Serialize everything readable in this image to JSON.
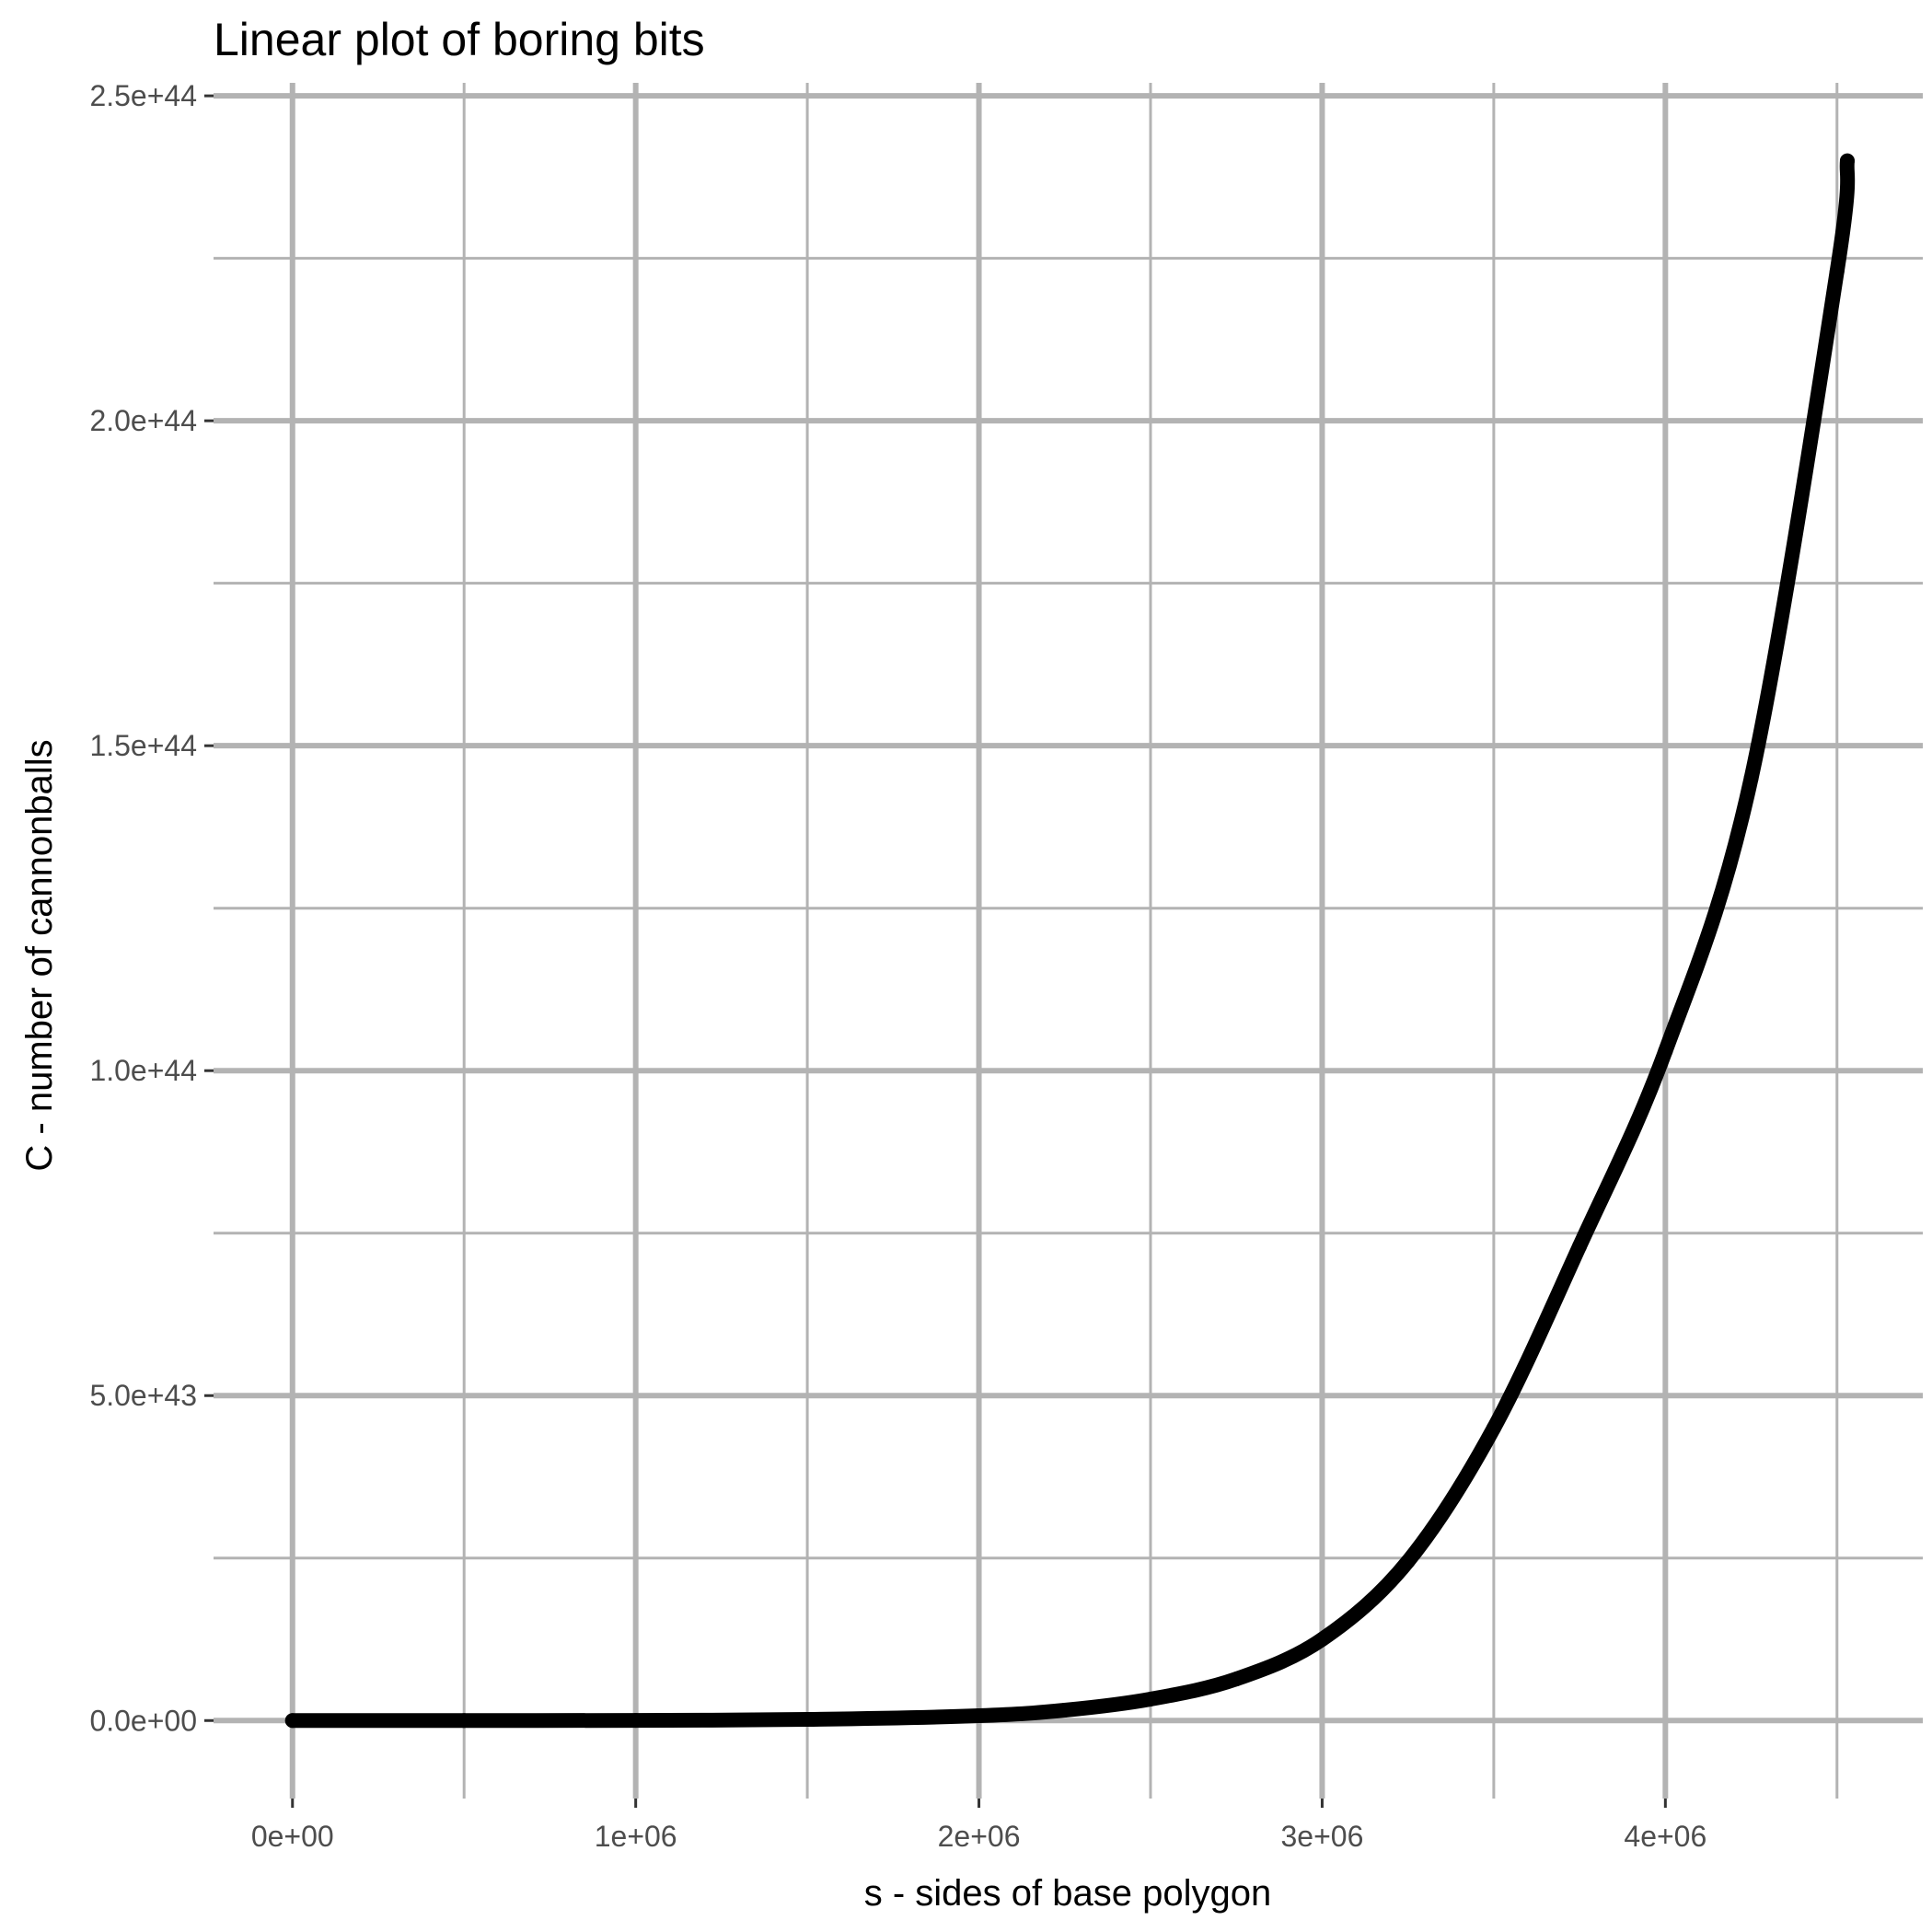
{
  "chart_data": {
    "type": "line",
    "title": "Linear plot of boring bits",
    "xlabel": "s - sides of base polygon",
    "ylabel": "C - number of cannonballs",
    "xlim": [
      -230000,
      4750000
    ],
    "ylim": [
      -1.2e+43,
      2.52e+44
    ],
    "x_major_ticks": [
      0,
      1000000,
      2000000,
      3000000,
      4000000
    ],
    "x_tick_labels": [
      "0e+00",
      "1e+06",
      "2e+06",
      "3e+06",
      "4e+06"
    ],
    "x_minor_ticks": [
      500000,
      1500000,
      2500000,
      3500000,
      4500000
    ],
    "y_major_ticks": [
      0,
      5e+43,
      1e+44,
      1.5e+44,
      2e+44,
      2.5e+44
    ],
    "y_tick_labels": [
      "0.0e+00",
      "5.0e+43",
      "1.0e+44",
      "1.5e+44",
      "2.0e+44",
      "2.5e+44"
    ],
    "y_minor_ticks": [
      2.5e+43,
      7.5e+43,
      1.25e+44,
      1.75e+44,
      2.25e+44
    ],
    "grid": true,
    "legend": "none",
    "series": [
      {
        "color": "#000000",
        "x": [
          0,
          500000,
          1000000,
          1500000,
          2000000,
          2250000,
          2500000,
          2750000,
          3000000,
          3250000,
          3500000,
          3750000,
          4000000,
          4250000,
          4500000,
          4530000
        ],
        "y": [
          0,
          1e+39,
          2.3e+40,
          1.8e+41,
          7.4e+41,
          1.6e+42,
          3.3e+42,
          6.4e+42,
          1.25e+43,
          2.45e+43,
          4.5e+43,
          7.3e+43,
          1.03e+44,
          1.45e+44,
          2.23e+44,
          2.4e+44
        ]
      }
    ]
  }
}
